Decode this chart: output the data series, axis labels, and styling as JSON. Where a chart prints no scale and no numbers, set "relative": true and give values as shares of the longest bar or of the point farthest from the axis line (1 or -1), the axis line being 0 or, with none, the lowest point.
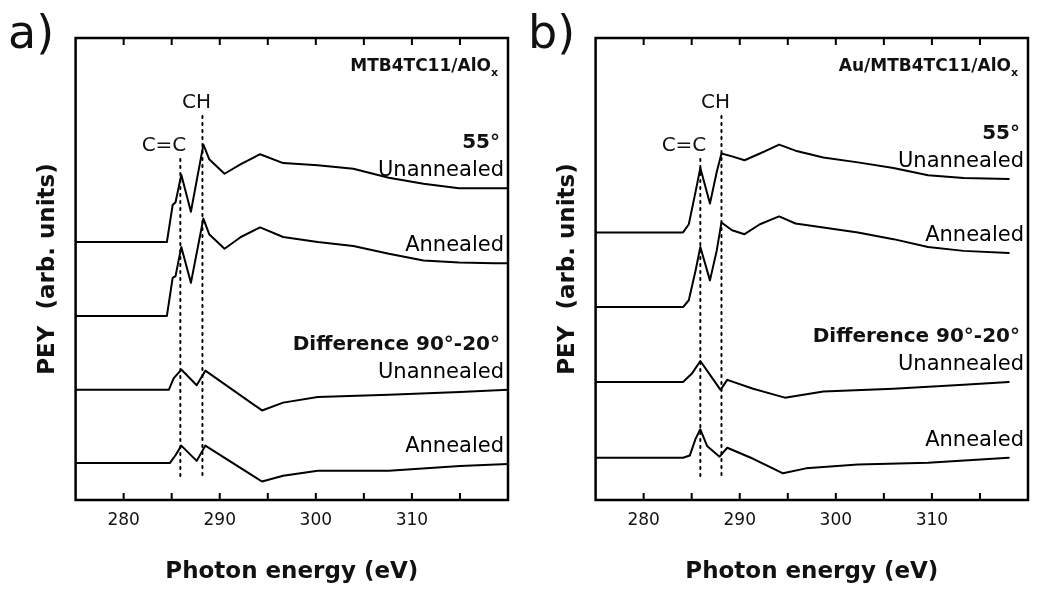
{
  "chart_data": [
    {
      "type": "line",
      "title": "MTB4TC11/AlO$_{x}$",
      "xlabel": "Photon energy (eV)",
      "ylabel": "PEY  (arb. units)",
      "relative": true,
      "legend": false,
      "marker": "none",
      "line_style": "solid",
      "xlim": [
        275,
        320
      ],
      "xticks": [
        280,
        {
          "value": 285,
          "label": null
        },
        290,
        {
          "value": 295,
          "label": null
        },
        300,
        {
          "value": 305,
          "label": null
        },
        310,
        {
          "value": 315,
          "label": null
        }
      ],
      "annotations": [
        "a)",
        "55°",
        "Difference 90°-20°"
      ],
      "ref_lines": [
        {
          "axis": "x",
          "value": 285.9,
          "label": "C=C",
          "line_style": "dotted",
          "color": "#000000"
        },
        {
          "axis": "x",
          "value": 288.2,
          "label": "CH",
          "line_style": "dotted",
          "color": "#000000"
        }
      ],
      "series": [
        {
          "name": "Unannealed",
          "color": "#000000",
          "x": [
            275,
            284.5,
            285.1,
            285.4,
            286.0,
            287.0,
            288.3,
            288.9,
            290.5,
            292.2,
            294.2,
            296.6,
            300.2,
            303.9,
            307.6,
            311.2,
            314.9,
            318.6,
            320
          ],
          "values": [
            0.726,
            0.726,
            0.83,
            0.838,
            0.915,
            0.811,
            1.0,
            0.959,
            0.918,
            0.945,
            0.973,
            0.948,
            0.942,
            0.932,
            0.907,
            0.89,
            0.877,
            0.877,
            0.877
          ]
        },
        {
          "name": "Annealed",
          "color": "#000000",
          "x": [
            275,
            284.5,
            285.1,
            285.4,
            286.0,
            287.0,
            288.3,
            288.9,
            290.5,
            292.2,
            294.2,
            296.6,
            300.2,
            303.9,
            307.6,
            311.2,
            314.9,
            318.6,
            320
          ],
          "values": [
            0.518,
            0.518,
            0.625,
            0.63,
            0.712,
            0.611,
            0.792,
            0.748,
            0.707,
            0.74,
            0.767,
            0.74,
            0.726,
            0.715,
            0.693,
            0.674,
            0.668,
            0.666,
            0.666
          ]
        },
        {
          "name": "Unannealed",
          "color": "#000000",
          "x": [
            275,
            284.7,
            285.2,
            286.0,
            287.6,
            288.5,
            294.4,
            296.6,
            300.2,
            307.6,
            315.0,
            320
          ],
          "values": [
            0.31,
            0.31,
            0.342,
            0.367,
            0.323,
            0.364,
            0.252,
            0.274,
            0.29,
            0.296,
            0.304,
            0.31
          ]
        },
        {
          "name": "Annealed",
          "color": "#000000",
          "x": [
            275,
            284.8,
            285.4,
            286.0,
            287.6,
            288.5,
            294.4,
            296.6,
            300.2,
            307.6,
            315.0,
            320
          ],
          "values": [
            0.104,
            0.104,
            0.126,
            0.153,
            0.11,
            0.153,
            0.052,
            0.068,
            0.082,
            0.082,
            0.096,
            0.101
          ]
        }
      ]
    },
    {
      "type": "line",
      "title": "Au/MTB4TC11/AlO$_{x}$",
      "xlabel": "Photon energy (eV)",
      "ylabel": "PEY  (arb. units)",
      "relative": true,
      "legend": false,
      "marker": "none",
      "line_style": "solid",
      "xlim": [
        275,
        320
      ],
      "xticks": [
        280,
        {
          "value": 285,
          "label": null
        },
        290,
        {
          "value": 295,
          "label": null
        },
        300,
        {
          "value": 305,
          "label": null
        },
        310,
        {
          "value": 315,
          "label": null
        }
      ],
      "annotations": [
        "b)",
        "55°",
        "Difference 90°-20°"
      ],
      "ref_lines": [
        {
          "axis": "x",
          "value": 285.9,
          "label": "C=C",
          "line_style": "dotted",
          "color": "#000000"
        },
        {
          "axis": "x",
          "value": 288.1,
          "label": "CH",
          "line_style": "dotted",
          "color": "#000000"
        }
      ],
      "series": [
        {
          "name": "Unannealed",
          "color": "#000000",
          "x": [
            275,
            284.1,
            284.7,
            285.4,
            285.9,
            286.9,
            287.6,
            288.1,
            289.2,
            290.5,
            292.1,
            294.1,
            295.8,
            298.7,
            302.3,
            306.0,
            309.6,
            313.3,
            318.0
          ],
          "values": [
            0.753,
            0.753,
            0.776,
            0.867,
            0.934,
            0.834,
            0.922,
            0.975,
            0.967,
            0.956,
            0.975,
            1.0,
            0.983,
            0.964,
            0.95,
            0.934,
            0.914,
            0.906,
            0.903
          ]
        },
        {
          "name": "Annealed",
          "color": "#000000",
          "x": [
            275,
            284.1,
            284.7,
            285.4,
            285.9,
            286.9,
            287.6,
            288.1,
            289.2,
            290.5,
            292.1,
            294.1,
            295.8,
            298.7,
            302.3,
            306.0,
            309.6,
            313.3,
            318.0
          ],
          "values": [
            0.543,
            0.543,
            0.562,
            0.645,
            0.712,
            0.618,
            0.701,
            0.781,
            0.759,
            0.748,
            0.776,
            0.798,
            0.778,
            0.767,
            0.753,
            0.734,
            0.712,
            0.701,
            0.695
          ]
        },
        {
          "name": "Unannealed",
          "color": "#000000",
          "x": [
            275,
            284.1,
            285.0,
            285.9,
            287.2,
            288.0,
            288.7,
            291.4,
            294.7,
            298.7,
            306.0,
            313.3,
            318.0
          ],
          "values": [
            0.332,
            0.332,
            0.355,
            0.391,
            0.341,
            0.31,
            0.338,
            0.313,
            0.288,
            0.305,
            0.313,
            0.324,
            0.332
          ]
        },
        {
          "name": "Annealed",
          "color": "#000000",
          "x": [
            275,
            284.1,
            284.8,
            285.4,
            285.9,
            286.6,
            287.9,
            288.7,
            291.4,
            294.5,
            296.9,
            302.3,
            309.6,
            318.0
          ],
          "values": [
            0.119,
            0.119,
            0.125,
            0.172,
            0.199,
            0.152,
            0.122,
            0.147,
            0.116,
            0.075,
            0.089,
            0.1,
            0.105,
            0.119
          ]
        }
      ]
    }
  ]
}
